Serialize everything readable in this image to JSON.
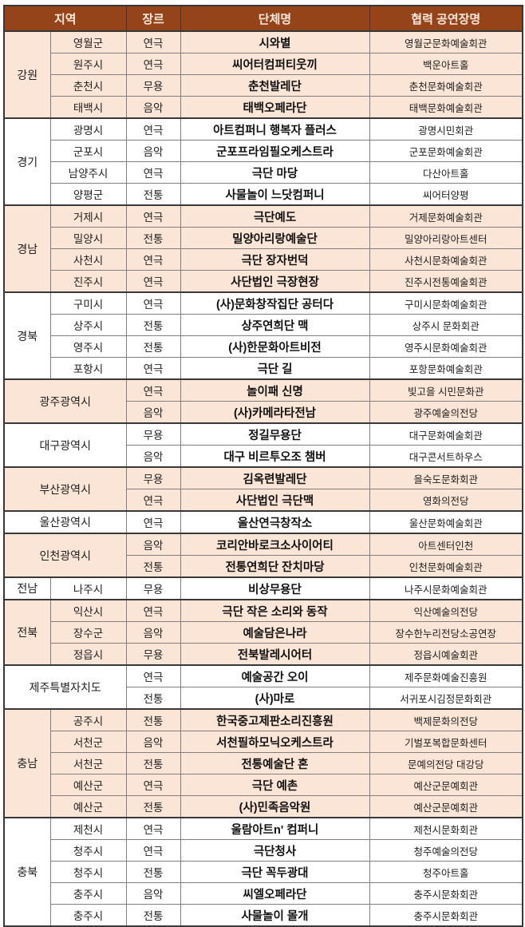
{
  "table": {
    "headers": {
      "region": "지역",
      "genre": "장르",
      "org": "단체명",
      "venue": "협력 공연장명"
    },
    "colors": {
      "header_bg": "#944418",
      "header_text": "#f7e8de",
      "row_peach": "#fbe5d6",
      "row_white": "#ffffff",
      "border_dark": "#383838",
      "border_light": "#7f7f7f",
      "text": "#1f1f1f"
    },
    "groups": [
      {
        "region": "강원",
        "merged": false,
        "shade": "peach",
        "rows": [
          {
            "city": "영월군",
            "genre": "연극",
            "org": "시와별",
            "venue": "영월군문화예술회관"
          },
          {
            "city": "원주시",
            "genre": "연극",
            "org": "씨어터컴퍼티웃끼",
            "venue": "백운아트홀"
          },
          {
            "city": "춘천시",
            "genre": "무용",
            "org": "춘천발레단",
            "venue": "춘천문화예술회관"
          },
          {
            "city": "태백시",
            "genre": "음악",
            "org": "태백오페라단",
            "venue": "태백문화예술회관"
          }
        ]
      },
      {
        "region": "경기",
        "merged": false,
        "shade": "white",
        "rows": [
          {
            "city": "광명시",
            "genre": "연극",
            "org": "아트컴퍼니 행복자 플러스",
            "venue": "광명시민회관"
          },
          {
            "city": "군포시",
            "genre": "음악",
            "org": "군포프라임필오케스트라",
            "venue": "군포문화예술회관"
          },
          {
            "city": "남양주시",
            "genre": "연극",
            "org": "극단 마당",
            "venue": "다산아트홀"
          },
          {
            "city": "양평군",
            "genre": "전통",
            "org": "사물놀이 느닷컴퍼니",
            "venue": "씨어터양평"
          }
        ]
      },
      {
        "region": "경남",
        "merged": false,
        "shade": "peach",
        "rows": [
          {
            "city": "거제시",
            "genre": "연극",
            "org": "극단예도",
            "venue": "거제문화예술회관"
          },
          {
            "city": "밀양시",
            "genre": "전통",
            "org": "밀양아리랑예술단",
            "venue": "밀양아리랑아트센터"
          },
          {
            "city": "사천시",
            "genre": "연극",
            "org": "극단 장자번덕",
            "venue": "사천시문화예술회관"
          },
          {
            "city": "진주시",
            "genre": "연극",
            "org": "사단법인 극장현장",
            "venue": "진주시전통예술회관"
          }
        ]
      },
      {
        "region": "경북",
        "merged": false,
        "shade": "white",
        "rows": [
          {
            "city": "구미시",
            "genre": "연극",
            "org": "(사)문화창작집단 공터다",
            "venue": "구미시문화예술회관"
          },
          {
            "city": "상주시",
            "genre": "전통",
            "org": "상주연희단 맥",
            "venue": "상주시 문화회관"
          },
          {
            "city": "영주시",
            "genre": "전통",
            "org": "(사)한문화아트비전",
            "venue": "영주시문화예술회관"
          },
          {
            "city": "포항시",
            "genre": "연극",
            "org": "극단 길",
            "venue": "포항문화예술회관"
          }
        ]
      },
      {
        "region": "광주광역시",
        "merged": true,
        "shade": "peach",
        "rows": [
          {
            "genre": "연극",
            "org": "놀이패 신명",
            "venue": "빛고을 시민문화관"
          },
          {
            "genre": "음악",
            "org": "(사)카메라타전남",
            "venue": "광주예술의전당"
          }
        ]
      },
      {
        "region": "대구광역시",
        "merged": true,
        "shade": "white",
        "rows": [
          {
            "genre": "무용",
            "org": "정길무용단",
            "venue": "대구문화예술회관"
          },
          {
            "genre": "음악",
            "org": "대구 비르투오조 챔버",
            "venue": "대구콘서트하우스"
          }
        ]
      },
      {
        "region": "부산광역시",
        "merged": true,
        "shade": "peach",
        "rows": [
          {
            "genre": "무용",
            "org": "김옥련발레단",
            "venue": "을숙도문화회관"
          },
          {
            "genre": "연극",
            "org": "사단법인 극단맥",
            "venue": "영화의전당"
          }
        ]
      },
      {
        "region": "울산광역시",
        "merged": true,
        "shade": "white",
        "rows": [
          {
            "genre": "연극",
            "org": "울산연극창작소",
            "venue": "울산문화예술회관"
          }
        ]
      },
      {
        "region": "인천광역시",
        "merged": true,
        "shade": "peach",
        "rows": [
          {
            "genre": "음악",
            "org": "코리안바로크소사이어티",
            "venue": "아트센터인천"
          },
          {
            "genre": "전통",
            "org": "전통연희단 잔치마당",
            "venue": "인천문화예술회관"
          }
        ]
      },
      {
        "region": "전남",
        "merged": false,
        "shade": "white",
        "rows": [
          {
            "city": "나주시",
            "genre": "무용",
            "org": "비상무용단",
            "venue": "나주시문화예술회관"
          }
        ]
      },
      {
        "region": "전북",
        "merged": false,
        "shade": "peach",
        "rows": [
          {
            "city": "익산시",
            "genre": "연극",
            "org": "극단 작은 소리와 동작",
            "venue": "익산예술의전당"
          },
          {
            "city": "장수군",
            "genre": "음악",
            "org": "예술담은나라",
            "venue": "장수한누리전당소공연장"
          },
          {
            "city": "정읍시",
            "genre": "무용",
            "org": "전북발레시어터",
            "venue": "정읍시예술회관"
          }
        ]
      },
      {
        "region": "제주특별자치도",
        "merged": true,
        "shade": "white",
        "rows": [
          {
            "genre": "연극",
            "org": "예술공간 오이",
            "venue": "제주문화예술진흥원"
          },
          {
            "genre": "전통",
            "org": "(사)마로",
            "venue": "서귀포시김정문화회관"
          }
        ]
      },
      {
        "region": "충남",
        "merged": false,
        "shade": "peach",
        "rows": [
          {
            "city": "공주시",
            "genre": "전통",
            "org": "한국중고제판소리진흥원",
            "venue": "백제문화의전당"
          },
          {
            "city": "서천군",
            "genre": "음악",
            "org": "서천필하모닉오케스트라",
            "venue": "기벌포복합문화센터"
          },
          {
            "city": "서천군",
            "genre": "전통",
            "org": "전통예술단 혼",
            "venue": "문예의전당 대강당"
          },
          {
            "city": "예산군",
            "genre": "연극",
            "org": "극단 예촌",
            "venue": "예산군문예회관"
          },
          {
            "city": "예산군",
            "genre": "전통",
            "org": "(사)민족음악원",
            "venue": "예산군문예회관"
          }
        ]
      },
      {
        "region": "충북",
        "merged": false,
        "shade": "white",
        "rows": [
          {
            "city": "제천시",
            "genre": "연극",
            "org": "울람아트n' 컴퍼니",
            "venue": "제천시문화회관"
          },
          {
            "city": "청주시",
            "genre": "연극",
            "org": "극단청사",
            "venue": "청주예술의전당"
          },
          {
            "city": "청주시",
            "genre": "전통",
            "org": "극단 꼭두광대",
            "venue": "청주아트홀"
          },
          {
            "city": "충주시",
            "genre": "음악",
            "org": "씨엘오페라단",
            "venue": "충주시문화회관"
          },
          {
            "city": "충주시",
            "genre": "전통",
            "org": "사물놀이 몰개",
            "venue": "충주시문화회관"
          }
        ]
      }
    ]
  }
}
